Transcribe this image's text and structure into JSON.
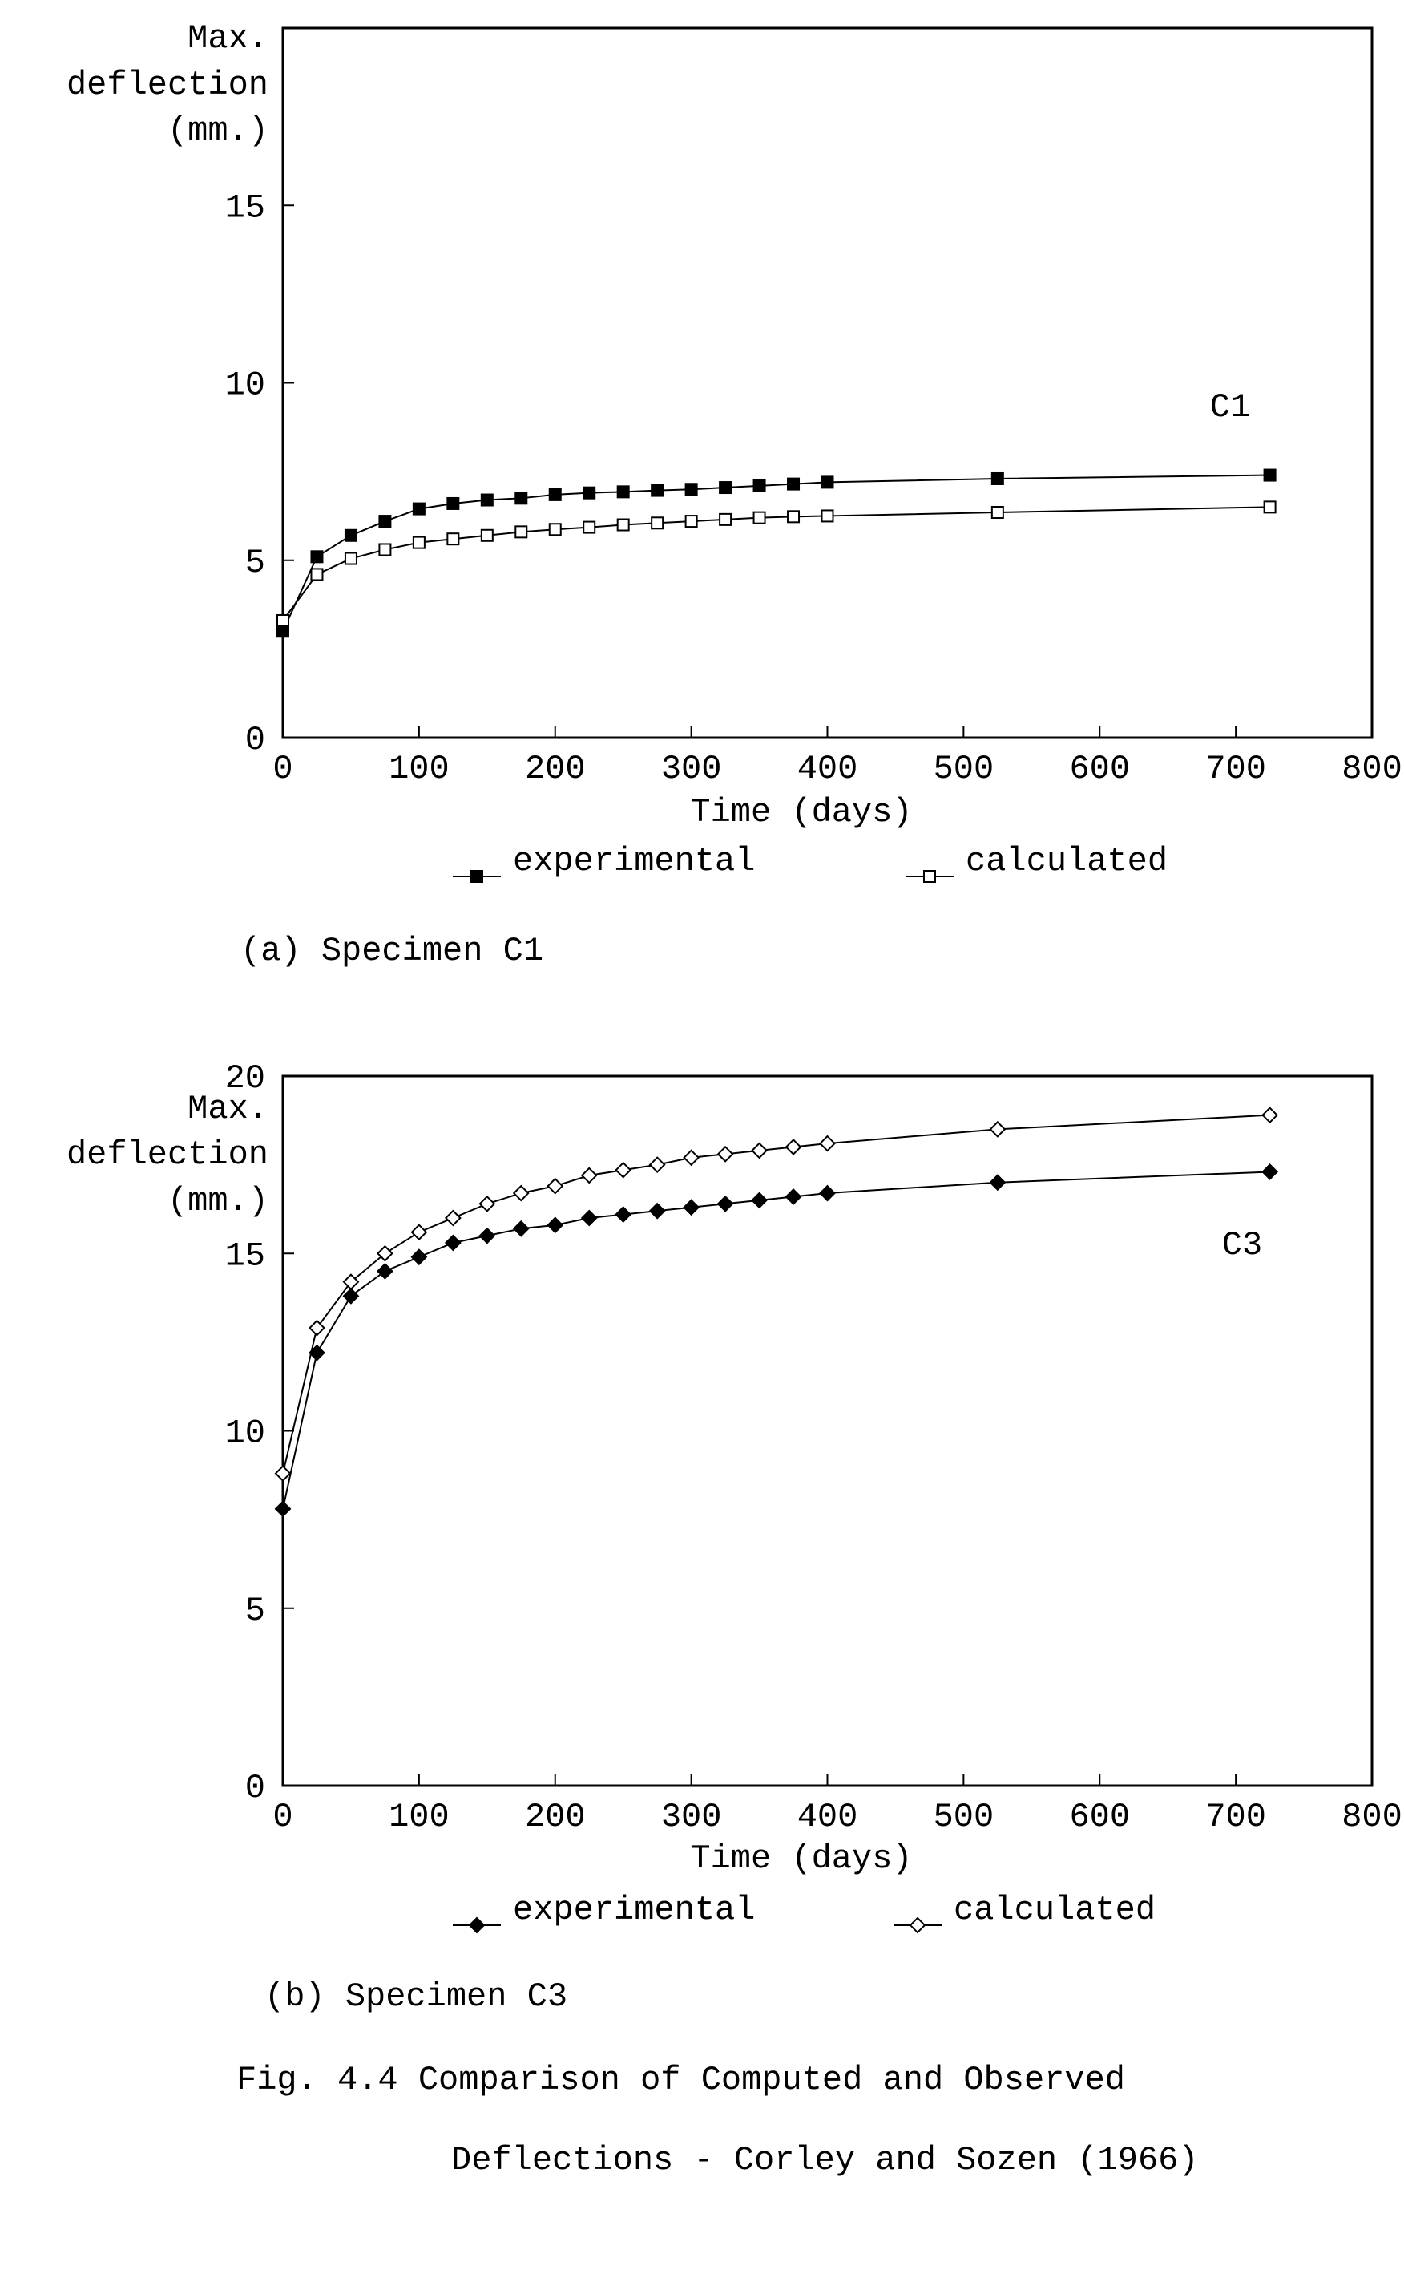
{
  "chart_data": [
    {
      "type": "line",
      "xlabel": "Time (days)",
      "ylabel": [
        "Max.",
        "deflection",
        "(mm.)"
      ],
      "xlim": [
        0,
        800
      ],
      "ylim": [
        0,
        20
      ],
      "xticks": [
        "0",
        "100",
        "200",
        "300",
        "400",
        "500",
        "600",
        "700",
        "800"
      ],
      "yticks": [
        "0",
        "5",
        "10",
        "15"
      ],
      "annotation": "C1",
      "caption": "(a) Specimen C1",
      "grid": false,
      "legend_position": "bottom",
      "series": [
        {
          "name": "experimental",
          "marker": "filled-square",
          "x": [
            0,
            25,
            50,
            75,
            100,
            125,
            150,
            175,
            200,
            225,
            250,
            275,
            300,
            325,
            350,
            375,
            400,
            525,
            725
          ],
          "y": [
            3.0,
            5.1,
            5.7,
            6.1,
            6.45,
            6.6,
            6.7,
            6.75,
            6.85,
            6.9,
            6.93,
            6.97,
            7.0,
            7.05,
            7.1,
            7.15,
            7.2,
            7.3,
            7.4
          ]
        },
        {
          "name": "calculated",
          "marker": "open-square",
          "x": [
            0,
            25,
            50,
            75,
            100,
            125,
            150,
            175,
            200,
            225,
            250,
            275,
            300,
            325,
            350,
            375,
            400,
            525,
            725
          ],
          "y": [
            3.3,
            4.6,
            5.05,
            5.3,
            5.5,
            5.6,
            5.7,
            5.8,
            5.87,
            5.93,
            6.0,
            6.05,
            6.1,
            6.15,
            6.2,
            6.23,
            6.25,
            6.35,
            6.5
          ]
        }
      ]
    },
    {
      "type": "line",
      "xlabel": "Time (days)",
      "ylabel": [
        "Max.",
        "deflection",
        "(mm.)"
      ],
      "xlim": [
        0,
        800
      ],
      "ylim": [
        0,
        20
      ],
      "xticks": [
        "0",
        "100",
        "200",
        "300",
        "400",
        "500",
        "600",
        "700",
        "800"
      ],
      "yticks": [
        "0",
        "5",
        "10",
        "15",
        "20"
      ],
      "annotation": "C3",
      "caption": "(b) Specimen C3",
      "grid": false,
      "legend_position": "bottom",
      "series": [
        {
          "name": "experimental",
          "marker": "filled-diamond",
          "x": [
            0,
            25,
            50,
            75,
            100,
            125,
            150,
            175,
            200,
            225,
            250,
            275,
            300,
            325,
            350,
            375,
            400,
            525,
            725
          ],
          "y": [
            7.8,
            12.2,
            13.8,
            14.5,
            14.9,
            15.3,
            15.5,
            15.7,
            15.8,
            16.0,
            16.1,
            16.2,
            16.3,
            16.4,
            16.5,
            16.6,
            16.7,
            17.0,
            17.3
          ]
        },
        {
          "name": "calculated",
          "marker": "open-diamond",
          "x": [
            0,
            25,
            50,
            75,
            100,
            125,
            150,
            175,
            200,
            225,
            250,
            275,
            300,
            325,
            350,
            375,
            400,
            525,
            725
          ],
          "y": [
            8.8,
            12.9,
            14.2,
            15.0,
            15.6,
            16.0,
            16.4,
            16.7,
            16.9,
            17.2,
            17.35,
            17.5,
            17.7,
            17.8,
            17.9,
            18.0,
            18.1,
            18.5,
            18.9
          ]
        }
      ]
    }
  ],
  "figure": {
    "caption_line1": "Fig. 4.4 Comparison of Computed and Observed",
    "caption_line2": "Deflections - Corley and Sozen (1966)"
  }
}
